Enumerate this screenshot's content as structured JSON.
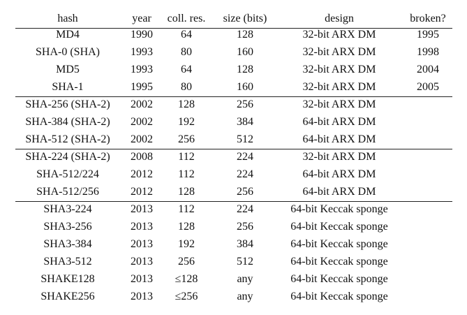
{
  "table": {
    "header": [
      "hash",
      "year",
      "coll. res.",
      "size (bits)",
      "design",
      "broken?"
    ],
    "groups": [
      [
        [
          "MD4",
          "1990",
          "64",
          "128",
          "32-bit ARX DM",
          "1995"
        ],
        [
          "SHA-0 (SHA)",
          "1993",
          "80",
          "160",
          "32-bit ARX DM",
          "1998"
        ],
        [
          "MD5",
          "1993",
          "64",
          "128",
          "32-bit ARX DM",
          "2004"
        ],
        [
          "SHA-1",
          "1995",
          "80",
          "160",
          "32-bit ARX DM",
          "2005"
        ]
      ],
      [
        [
          "SHA-256 (SHA-2)",
          "2002",
          "128",
          "256",
          "32-bit ARX DM"
        ],
        [
          "SHA-384 (SHA-2)",
          "2002",
          "192",
          "384",
          "64-bit ARX DM"
        ],
        [
          "SHA-512 (SHA-2)",
          "2002",
          "256",
          "512",
          "64-bit ARX DM"
        ]
      ],
      [
        [
          "SHA-224 (SHA-2)",
          "2008",
          "112",
          "224",
          "32-bit ARX DM"
        ],
        [
          "SHA-512/224",
          "2012",
          "112",
          "224",
          "64-bit ARX DM"
        ],
        [
          "SHA-512/256",
          "2012",
          "128",
          "256",
          "64-bit ARX DM"
        ]
      ],
      [
        [
          "SHA3-224",
          "2013",
          "112",
          "224",
          "64-bit Keccak sponge"
        ],
        [
          "SHA3-256",
          "2013",
          "128",
          "256",
          "64-bit Keccak sponge"
        ],
        [
          "SHA3-384",
          "2013",
          "192",
          "384",
          "64-bit Keccak sponge"
        ],
        [
          "SHA3-512",
          "2013",
          "256",
          "512",
          "64-bit Keccak sponge"
        ],
        [
          "SHAKE128",
          "2013",
          "≤128",
          "any",
          "64-bit Keccak sponge"
        ],
        [
          "SHAKE256",
          "2013",
          "≤256",
          "any",
          "64-bit Keccak sponge"
        ]
      ]
    ]
  }
}
